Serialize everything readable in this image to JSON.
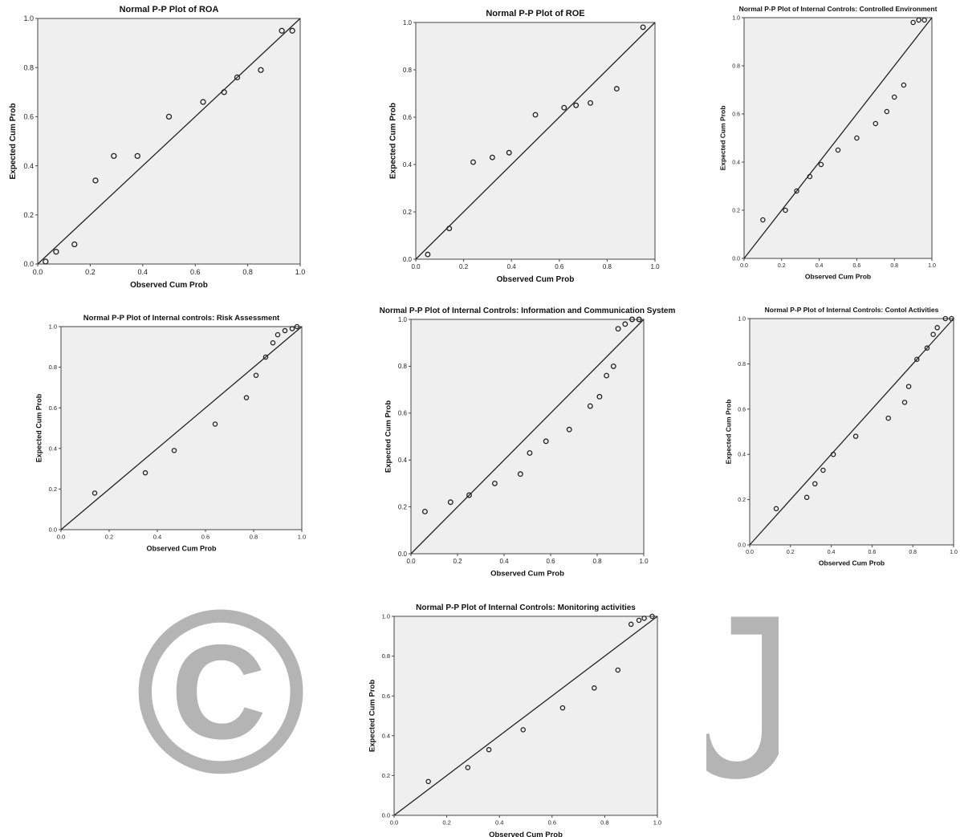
{
  "watermark": {
    "symbol": "©",
    "letter": "J",
    "color": "#b4b4b4"
  },
  "chart_data": [
    {
      "type": "scatter",
      "title": "Normal P-P Plot of ROA",
      "xlabel": "Observed Cum Prob",
      "ylabel": "Expected Cum Prob",
      "xlim": [
        0,
        1
      ],
      "ylim": [
        0,
        1
      ],
      "ticks": [
        "0.0",
        "0.2",
        "0.4",
        "0.6",
        "0.8",
        "1.0"
      ],
      "reference_line": "y = x",
      "grid": false,
      "points": [
        [
          0.03,
          0.01
        ],
        [
          0.07,
          0.05
        ],
        [
          0.14,
          0.08
        ],
        [
          0.22,
          0.34
        ],
        [
          0.29,
          0.44
        ],
        [
          0.38,
          0.44
        ],
        [
          0.5,
          0.6
        ],
        [
          0.63,
          0.66
        ],
        [
          0.71,
          0.7
        ],
        [
          0.76,
          0.76
        ],
        [
          0.85,
          0.79
        ],
        [
          0.93,
          0.95
        ],
        [
          0.97,
          0.95
        ]
      ]
    },
    {
      "type": "scatter",
      "title": "Normal P-P Plot of ROE",
      "xlabel": "Observed Cum Prob",
      "ylabel": "Expected Cum Prob",
      "xlim": [
        0,
        1
      ],
      "ylim": [
        0,
        1
      ],
      "ticks": [
        "0.0",
        "0.2",
        "0.4",
        "0.6",
        "0.8",
        "1.0"
      ],
      "reference_line": "y = x",
      "grid": false,
      "points": [
        [
          0.05,
          0.02
        ],
        [
          0.14,
          0.13
        ],
        [
          0.24,
          0.41
        ],
        [
          0.32,
          0.43
        ],
        [
          0.39,
          0.45
        ],
        [
          0.5,
          0.61
        ],
        [
          0.62,
          0.64
        ],
        [
          0.67,
          0.65
        ],
        [
          0.73,
          0.66
        ],
        [
          0.84,
          0.72
        ],
        [
          0.95,
          0.98
        ]
      ]
    },
    {
      "type": "scatter",
      "title": "Normal P-P Plot of Internal Controls: Controlled Environment",
      "xlabel": "Observed Cum Prob",
      "ylabel": "Expected Cum Prob",
      "xlim": [
        0,
        1
      ],
      "ylim": [
        0,
        1
      ],
      "ticks": [
        "0.0",
        "0.2",
        "0.4",
        "0.6",
        "0.8",
        "1.0"
      ],
      "reference_line": "y = x",
      "grid": false,
      "points": [
        [
          0.1,
          0.16
        ],
        [
          0.22,
          0.2
        ],
        [
          0.28,
          0.28
        ],
        [
          0.35,
          0.34
        ],
        [
          0.41,
          0.39
        ],
        [
          0.5,
          0.45
        ],
        [
          0.6,
          0.5
        ],
        [
          0.7,
          0.56
        ],
        [
          0.76,
          0.61
        ],
        [
          0.8,
          0.67
        ],
        [
          0.85,
          0.72
        ],
        [
          0.9,
          0.98
        ],
        [
          0.93,
          0.99
        ],
        [
          0.96,
          0.99
        ]
      ]
    },
    {
      "type": "scatter",
      "title": "Normal P-P Plot of Internal controls: Risk Assessment",
      "xlabel": "Observed Cum Prob",
      "ylabel": "Expected Cum Prob",
      "xlim": [
        0,
        1
      ],
      "ylim": [
        0,
        1
      ],
      "ticks": [
        "0.0",
        "0.2",
        "0.4",
        "0.6",
        "0.8",
        "1.0"
      ],
      "reference_line": "y = x",
      "grid": false,
      "points": [
        [
          0.14,
          0.18
        ],
        [
          0.35,
          0.28
        ],
        [
          0.47,
          0.39
        ],
        [
          0.64,
          0.52
        ],
        [
          0.77,
          0.65
        ],
        [
          0.81,
          0.76
        ],
        [
          0.85,
          0.85
        ],
        [
          0.88,
          0.92
        ],
        [
          0.9,
          0.96
        ],
        [
          0.93,
          0.98
        ],
        [
          0.96,
          0.99
        ],
        [
          0.98,
          1.0
        ]
      ]
    },
    {
      "type": "scatter",
      "title": "Normal P-P Plot of Internal Controls: Information and Communication System",
      "xlabel": "Observed Cum Prob",
      "ylabel": "Expected Cum Prob",
      "xlim": [
        0,
        1
      ],
      "ylim": [
        0,
        1
      ],
      "ticks": [
        "0.0",
        "0.2",
        "0.4",
        "0.6",
        "0.8",
        "1.0"
      ],
      "reference_line": "y = x",
      "grid": false,
      "points": [
        [
          0.06,
          0.18
        ],
        [
          0.17,
          0.22
        ],
        [
          0.25,
          0.25
        ],
        [
          0.36,
          0.3
        ],
        [
          0.47,
          0.34
        ],
        [
          0.51,
          0.43
        ],
        [
          0.58,
          0.48
        ],
        [
          0.68,
          0.53
        ],
        [
          0.77,
          0.63
        ],
        [
          0.81,
          0.67
        ],
        [
          0.84,
          0.76
        ],
        [
          0.87,
          0.8
        ],
        [
          0.89,
          0.96
        ],
        [
          0.92,
          0.98
        ],
        [
          0.95,
          1.0
        ],
        [
          0.98,
          1.0
        ]
      ]
    },
    {
      "type": "scatter",
      "title": "Normal P-P Plot of Internal Controls: Contol Activities",
      "xlabel": "Observed Cum Prob",
      "ylabel": "Expected Cum Prob",
      "xlim": [
        0,
        1
      ],
      "ylim": [
        0,
        1
      ],
      "ticks": [
        "0.0",
        "0.2",
        "0.4",
        "0.6",
        "0.8",
        "1.0"
      ],
      "reference_line": "y = x",
      "grid": false,
      "points": [
        [
          0.13,
          0.16
        ],
        [
          0.28,
          0.21
        ],
        [
          0.32,
          0.27
        ],
        [
          0.36,
          0.33
        ],
        [
          0.41,
          0.4
        ],
        [
          0.52,
          0.48
        ],
        [
          0.68,
          0.56
        ],
        [
          0.76,
          0.63
        ],
        [
          0.78,
          0.7
        ],
        [
          0.82,
          0.82
        ],
        [
          0.87,
          0.87
        ],
        [
          0.9,
          0.93
        ],
        [
          0.92,
          0.96
        ],
        [
          0.96,
          1.0
        ],
        [
          0.99,
          1.0
        ]
      ]
    },
    {
      "type": "scatter",
      "title": "Normal P-P Plot of Internal Controls: Monitoring activities",
      "xlabel": "Observed Cum Prob",
      "ylabel": "Expected Cum Prob",
      "xlim": [
        0,
        1
      ],
      "ylim": [
        0,
        1
      ],
      "ticks": [
        "0.0",
        "0.2",
        "0.4",
        "0.6",
        "0.8",
        "1.0"
      ],
      "reference_line": "y = x",
      "grid": false,
      "points": [
        [
          0.13,
          0.17
        ],
        [
          0.28,
          0.24
        ],
        [
          0.36,
          0.33
        ],
        [
          0.49,
          0.43
        ],
        [
          0.64,
          0.54
        ],
        [
          0.76,
          0.64
        ],
        [
          0.85,
          0.73
        ],
        [
          0.9,
          0.96
        ],
        [
          0.93,
          0.98
        ],
        [
          0.95,
          0.99
        ],
        [
          0.98,
          1.0
        ]
      ]
    }
  ]
}
